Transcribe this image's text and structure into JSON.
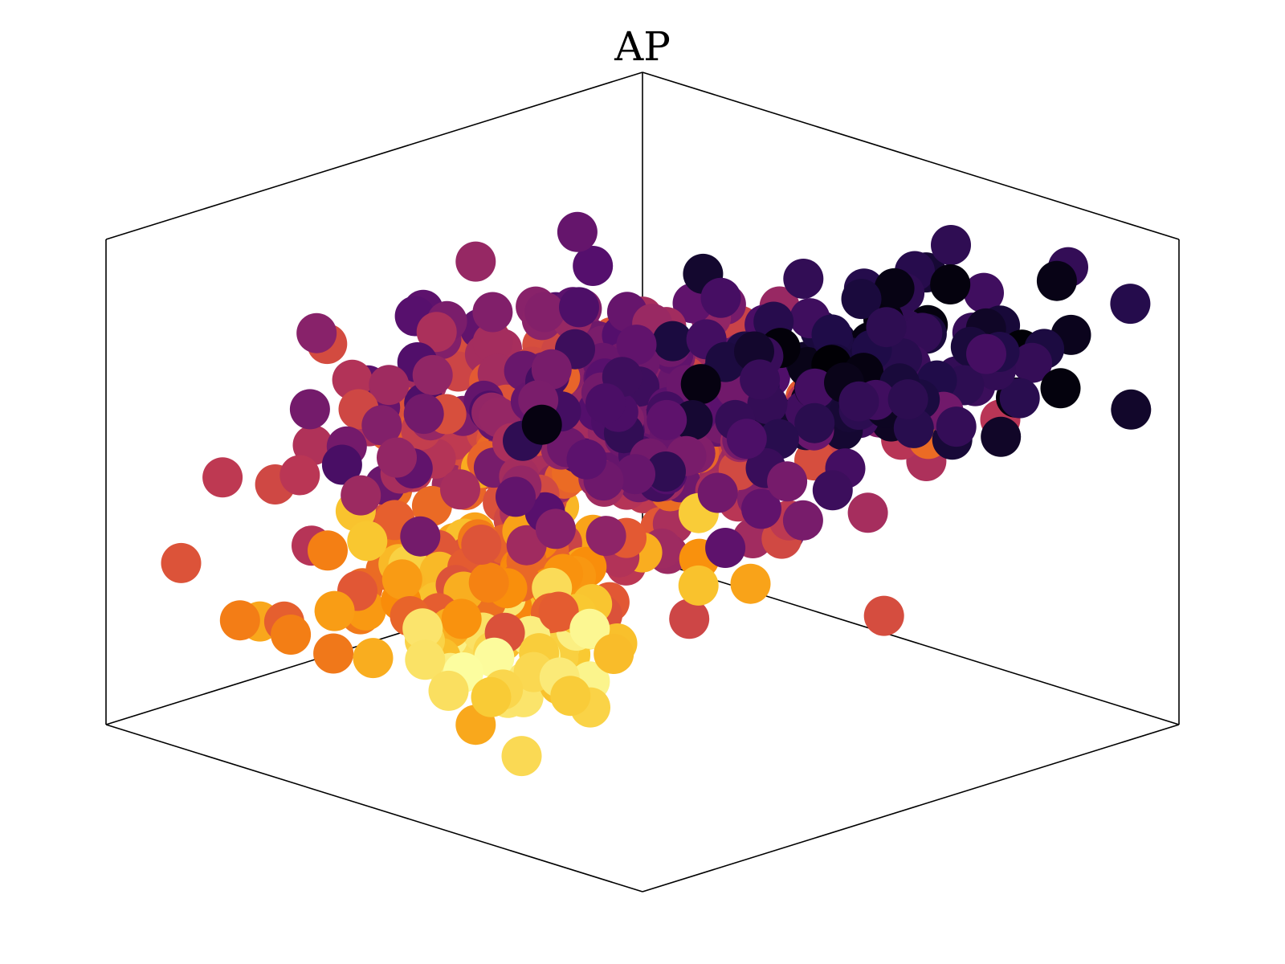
{
  "chart_data": {
    "type": "scatter",
    "projection": "3d",
    "title": "AP",
    "colormap": "inferno",
    "axes_visible": false,
    "grid": false,
    "xlim": [
      0,
      10
    ],
    "ylim": [
      0,
      10
    ],
    "zlim": [
      0,
      10
    ],
    "clusters": [
      {
        "center": [
          6.5,
          2.0,
          8.0
        ],
        "spread": [
          1.5,
          1.0,
          0.7
        ],
        "count": 110,
        "c_range": [
          0.0,
          0.22
        ]
      },
      {
        "center": [
          3.5,
          3.0,
          7.6
        ],
        "spread": [
          1.0,
          1.2,
          0.6
        ],
        "count": 60,
        "c_range": [
          0.15,
          0.35
        ]
      },
      {
        "center": [
          5.0,
          6.0,
          6.2
        ],
        "spread": [
          1.8,
          1.6,
          0.8
        ],
        "count": 150,
        "c_range": [
          0.22,
          0.45
        ]
      },
      {
        "center": [
          6.5,
          7.5,
          4.6
        ],
        "spread": [
          2.0,
          1.8,
          0.9
        ],
        "count": 200,
        "c_range": [
          0.42,
          0.68
        ]
      },
      {
        "center": [
          3.0,
          6.0,
          3.2
        ],
        "spread": [
          1.5,
          1.2,
          0.6
        ],
        "count": 90,
        "c_range": [
          0.6,
          0.9
        ]
      },
      {
        "center": [
          2.6,
          4.6,
          2.3
        ],
        "spread": [
          0.8,
          0.7,
          0.5
        ],
        "count": 40,
        "c_range": [
          0.85,
          1.0
        ]
      }
    ]
  }
}
